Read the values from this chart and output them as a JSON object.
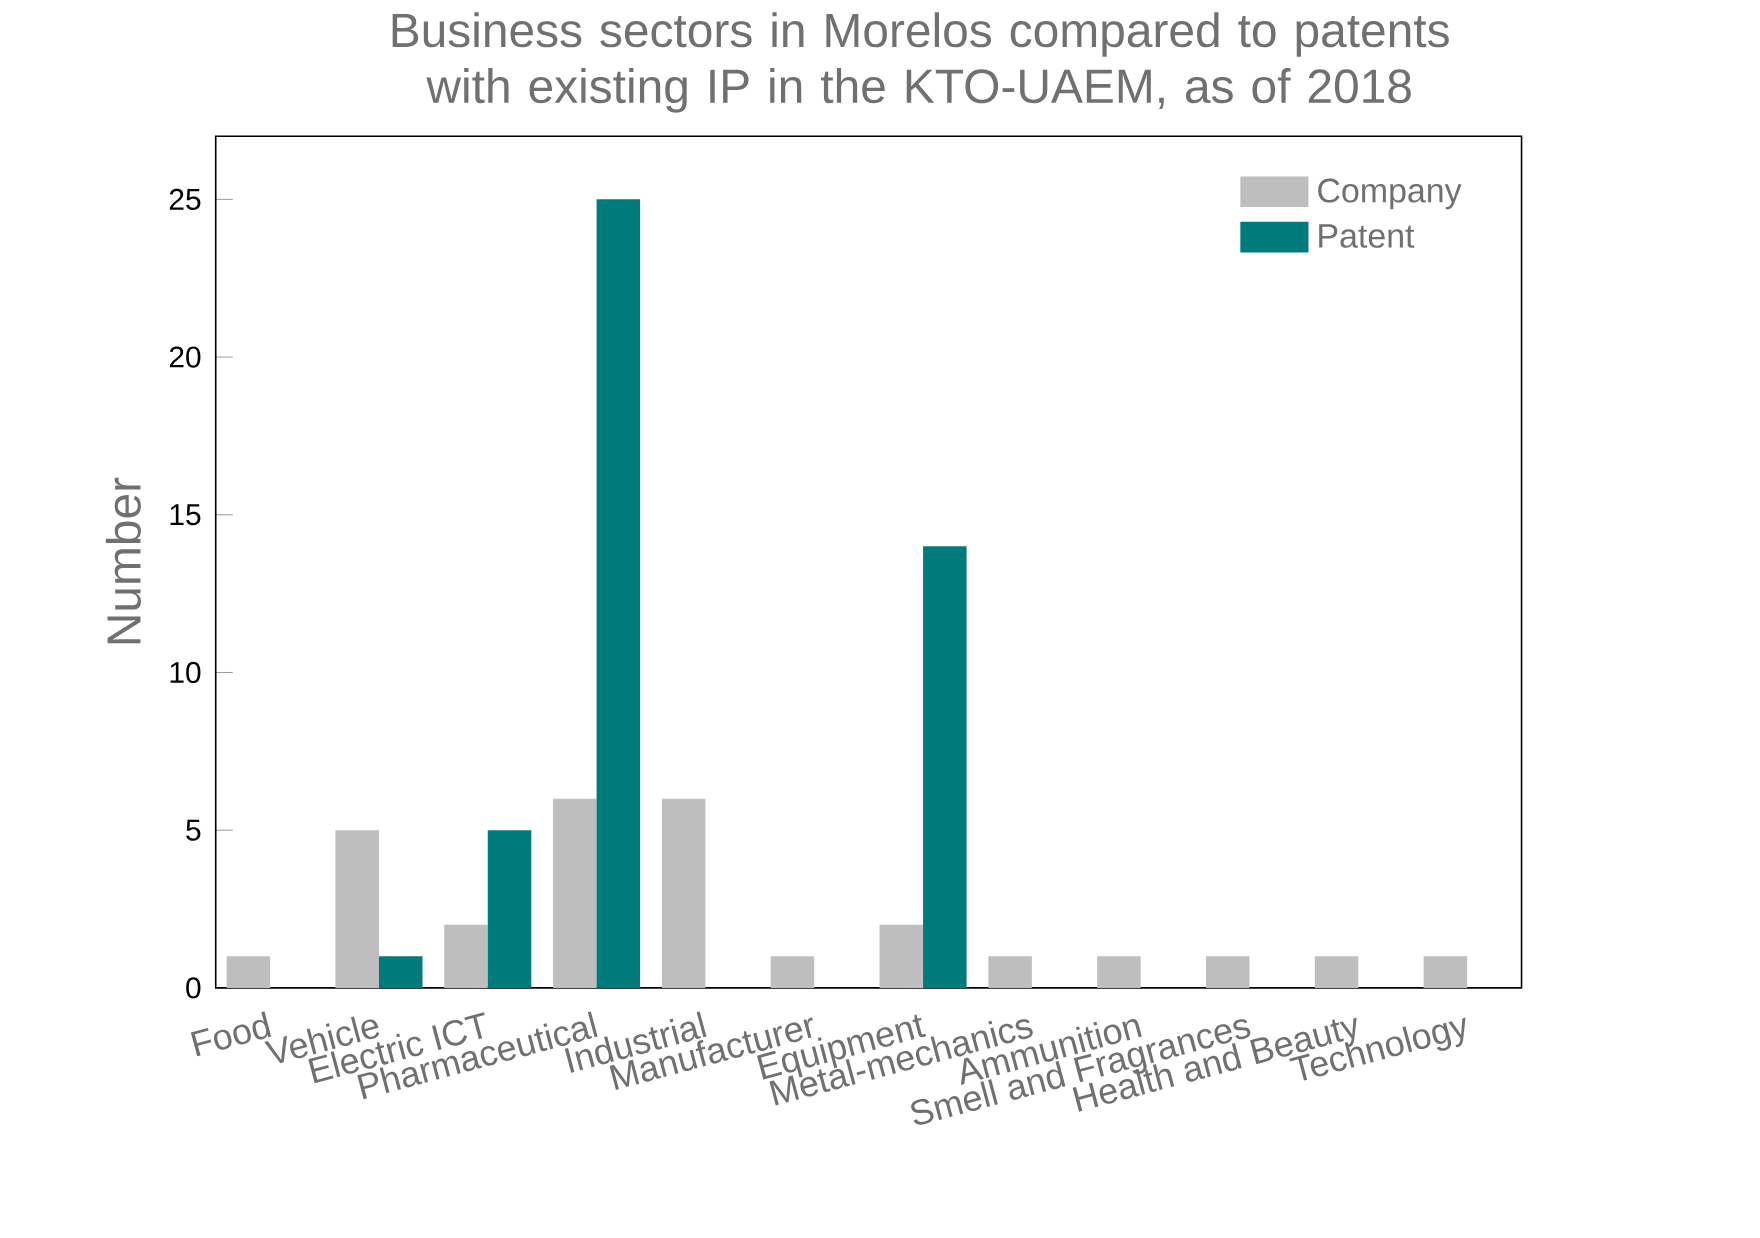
{
  "chart_data": {
    "type": "bar",
    "title": "Business sectors in Morelos compared to patents with existing IP in the KTO-UAEM, as of 2018",
    "ylabel": "Number",
    "categories": [
      "Food",
      "Vehicle",
      "Electric ICT",
      "Pharmaceutical",
      "Industrial",
      "Manufacturer",
      "Equipment",
      "Metal-mechanics",
      "Ammunition",
      "Smell and Fragrances",
      "Health and Beauty",
      "Technology"
    ],
    "series": [
      {
        "name": "Company",
        "color": "#bebebe",
        "values": [
          1,
          5,
          2,
          6,
          6,
          1,
          2,
          1,
          1,
          1,
          1,
          1
        ]
      },
      {
        "name": "Patent",
        "color": "#007b7b",
        "values": [
          0,
          1,
          5,
          25,
          0,
          0,
          14,
          0,
          0,
          0,
          0,
          0
        ]
      }
    ],
    "ylim": [
      0,
      27
    ],
    "yticks": [
      0,
      5,
      10,
      15,
      20,
      25
    ],
    "grid": false,
    "legend": "top right"
  }
}
